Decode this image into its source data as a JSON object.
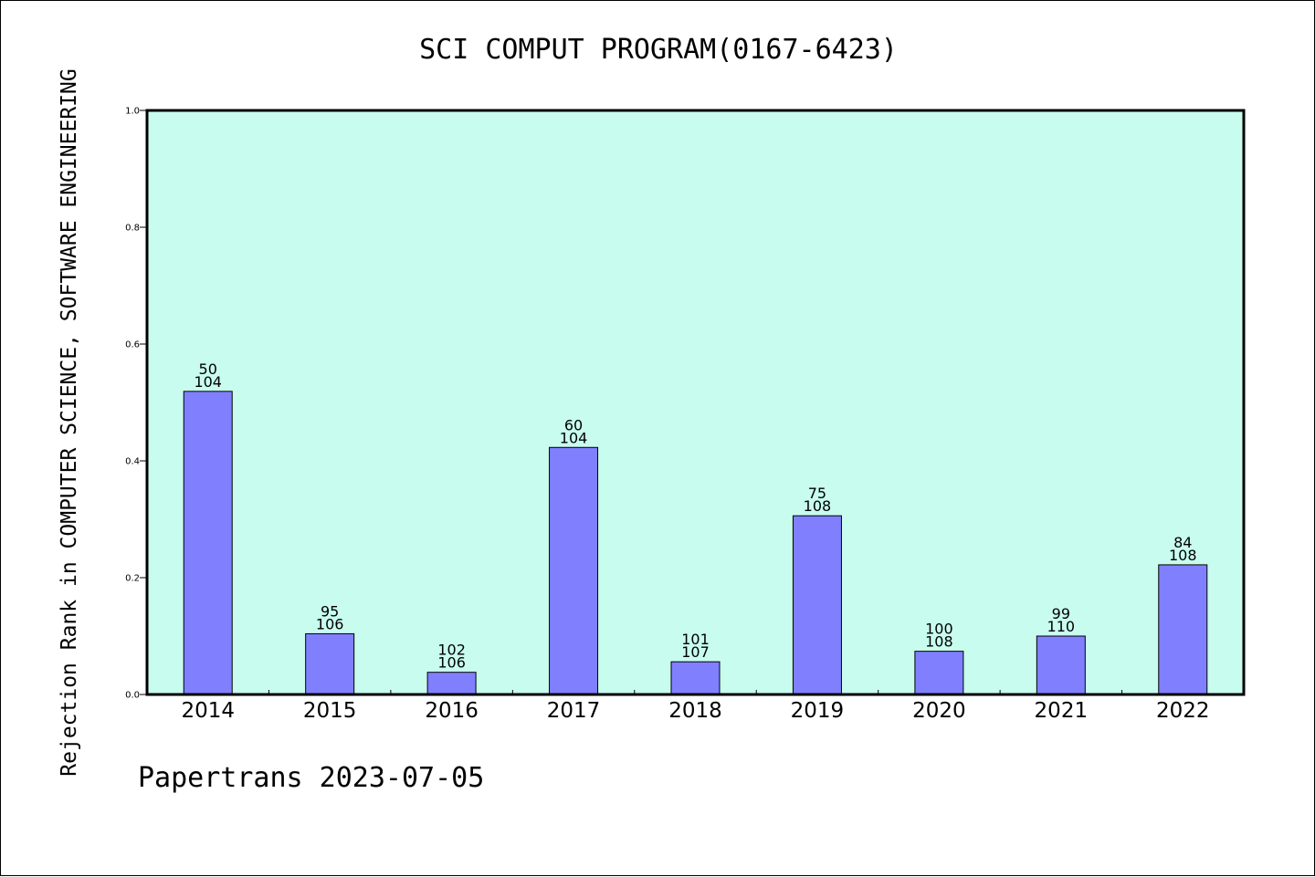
{
  "header": {
    "title": "SCI COMPUT PROGRAM(0167-6423)"
  },
  "footer": {
    "text": "Papertrans 2023-07-05"
  },
  "colors": {
    "plot_bg": "#c8fcee",
    "bar": "#8080ff",
    "axis": "#000000"
  },
  "chart_data": {
    "type": "bar",
    "title": "SCI COMPUT PROGRAM(0167-6423)",
    "xlabel": "",
    "ylabel": "Rejection Rank in COMPUTER SCIENCE, SOFTWARE ENGINEERING",
    "ylim": [
      0,
      1.0
    ],
    "yticks": [
      "0.0",
      "0.2",
      "0.4",
      "0.6",
      "0.8",
      "1.0"
    ],
    "grid": false,
    "categories": [
      "2014",
      "2015",
      "2016",
      "2017",
      "2018",
      "2019",
      "2020",
      "2021",
      "2022"
    ],
    "values": [
      0.519,
      0.104,
      0.038,
      0.423,
      0.056,
      0.306,
      0.074,
      0.1,
      0.222
    ],
    "labels_top": [
      "50",
      "95",
      "102",
      "60",
      "101",
      "75",
      "100",
      "99",
      "84"
    ],
    "labels_bottom": [
      "104",
      "106",
      "106",
      "104",
      "107",
      "108",
      "108",
      "110",
      "108"
    ]
  }
}
